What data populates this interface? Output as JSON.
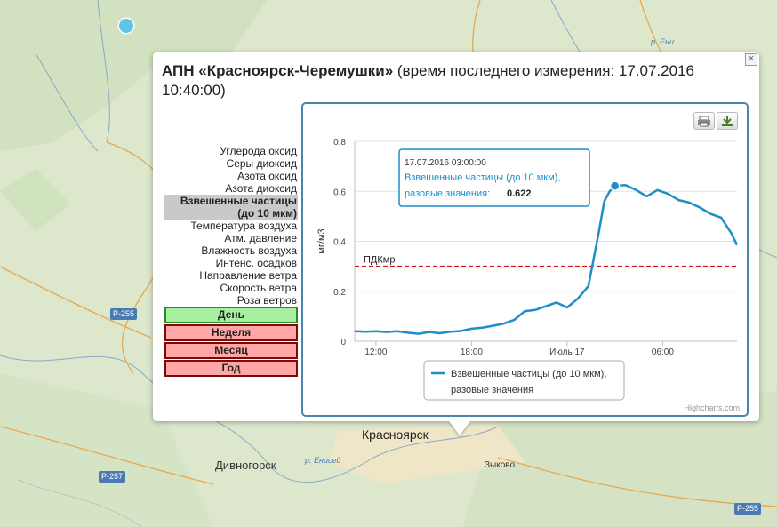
{
  "map": {
    "labels": {
      "krasnoyarsk": "Красноярск",
      "divnogorsk": "Дивногорск",
      "zykovo": "Зыково",
      "river_yenisei": "р. Енисей",
      "river_top": "р. Ени",
      "r255_left": "Р-255",
      "r255_right": "Р-255",
      "r257": "Р-257"
    }
  },
  "popup": {
    "close_label": "×",
    "title_bold": "АПН «Красноярск-Черемушки»",
    "title_rest": " (время последнего измерения: 17.07.2016 10:40:00)"
  },
  "parameters": [
    "Углерода оксид",
    "Серы диоксид",
    "Азота оксид",
    "Азота диоксид",
    "Взвешенные частицы (до 10 мкм)",
    "Температура воздуха",
    "Атм. давление",
    "Влажность воздуха",
    "Интенс. осадков",
    "Направление ветра",
    "Скорость ветра",
    "Роза ветров"
  ],
  "selected_parameter_index": 4,
  "periods": {
    "day": "День",
    "week": "Неделя",
    "month": "Месяц",
    "year": "Год",
    "active": "day"
  },
  "chart": {
    "print_icon": "printer-icon",
    "download_icon": "download-icon",
    "credits": "Highcharts.com",
    "colors": {
      "series": "#1e8ec9",
      "threshold": "#d6131b",
      "frame": "#4a84a8"
    }
  },
  "chart_data": {
    "type": "line",
    "title": "",
    "xlabel": "",
    "ylabel": "мг/м3",
    "ylim": [
      0,
      0.8
    ],
    "yticks": [
      "0",
      "0.2",
      "0.4",
      "0.6",
      "0.8"
    ],
    "xticks": [
      {
        "label": "12:00",
        "x": "16.07.2016 12:00"
      },
      {
        "label": "18:00",
        "x": "16.07.2016 18:00"
      },
      {
        "label": "Июль 17",
        "x": "17.07.2016 00:00"
      },
      {
        "label": "06:00",
        "x": "17.07.2016 06:00"
      }
    ],
    "xrange": [
      "16.07.2016 10:40",
      "17.07.2016 10:40"
    ],
    "threshold": {
      "label": "ПДКмр",
      "value": 0.3
    },
    "series": [
      {
        "name": "Взвешенные частицы (до 10 мкм), разовые значения",
        "color": "#1e8ec9",
        "points": [
          [
            "16.07.2016 10:40",
            0.04
          ],
          [
            "16.07.2016 11:20",
            0.038
          ],
          [
            "16.07.2016 12:00",
            0.04
          ],
          [
            "16.07.2016 12:40",
            0.037
          ],
          [
            "16.07.2016 13:20",
            0.04
          ],
          [
            "16.07.2016 14:00",
            0.034
          ],
          [
            "16.07.2016 14:40",
            0.03
          ],
          [
            "16.07.2016 15:20",
            0.037
          ],
          [
            "16.07.2016 16:00",
            0.032
          ],
          [
            "16.07.2016 16:40",
            0.038
          ],
          [
            "16.07.2016 17:20",
            0.041
          ],
          [
            "16.07.2016 18:00",
            0.05
          ],
          [
            "16.07.2016 18:40",
            0.054
          ],
          [
            "16.07.2016 19:20",
            0.062
          ],
          [
            "16.07.2016 20:00",
            0.07
          ],
          [
            "16.07.2016 20:40",
            0.085
          ],
          [
            "16.07.2016 21:20",
            0.12
          ],
          [
            "16.07.2016 22:00",
            0.125
          ],
          [
            "16.07.2016 22:40",
            0.14
          ],
          [
            "16.07.2016 23:20",
            0.155
          ],
          [
            "17.07.2016 00:00",
            0.135
          ],
          [
            "17.07.2016 00:40",
            0.17
          ],
          [
            "17.07.2016 01:20",
            0.22
          ],
          [
            "17.07.2016 02:00",
            0.44
          ],
          [
            "17.07.2016 02:20",
            0.56
          ],
          [
            "17.07.2016 02:40",
            0.6
          ],
          [
            "17.07.2016 03:00",
            0.622
          ],
          [
            "17.07.2016 03:40",
            0.625
          ],
          [
            "17.07.2016 04:20",
            0.605
          ],
          [
            "17.07.2016 05:00",
            0.58
          ],
          [
            "17.07.2016 05:40",
            0.605
          ],
          [
            "17.07.2016 06:20",
            0.59
          ],
          [
            "17.07.2016 07:00",
            0.565
          ],
          [
            "17.07.2016 07:40",
            0.555
          ],
          [
            "17.07.2016 08:20",
            0.535
          ],
          [
            "17.07.2016 09:00",
            0.51
          ],
          [
            "17.07.2016 09:40",
            0.495
          ],
          [
            "17.07.2016 10:20",
            0.43
          ],
          [
            "17.07.2016 10:40",
            0.385
          ]
        ]
      }
    ],
    "legend": {
      "position": "bottom-center",
      "line1": "Взвешенные частицы (до 10 мкм),",
      "line2": "разовые значения"
    },
    "tooltip": {
      "date": "17.07.2016 03:00:00",
      "line1": "Взвешенные частицы (до 10 мкм),",
      "label": "разовые значения:",
      "value": "0.622",
      "x": "17.07.2016 03:00",
      "y": 0.622
    },
    "grid": {
      "horizontal": true,
      "vertical": false
    }
  }
}
